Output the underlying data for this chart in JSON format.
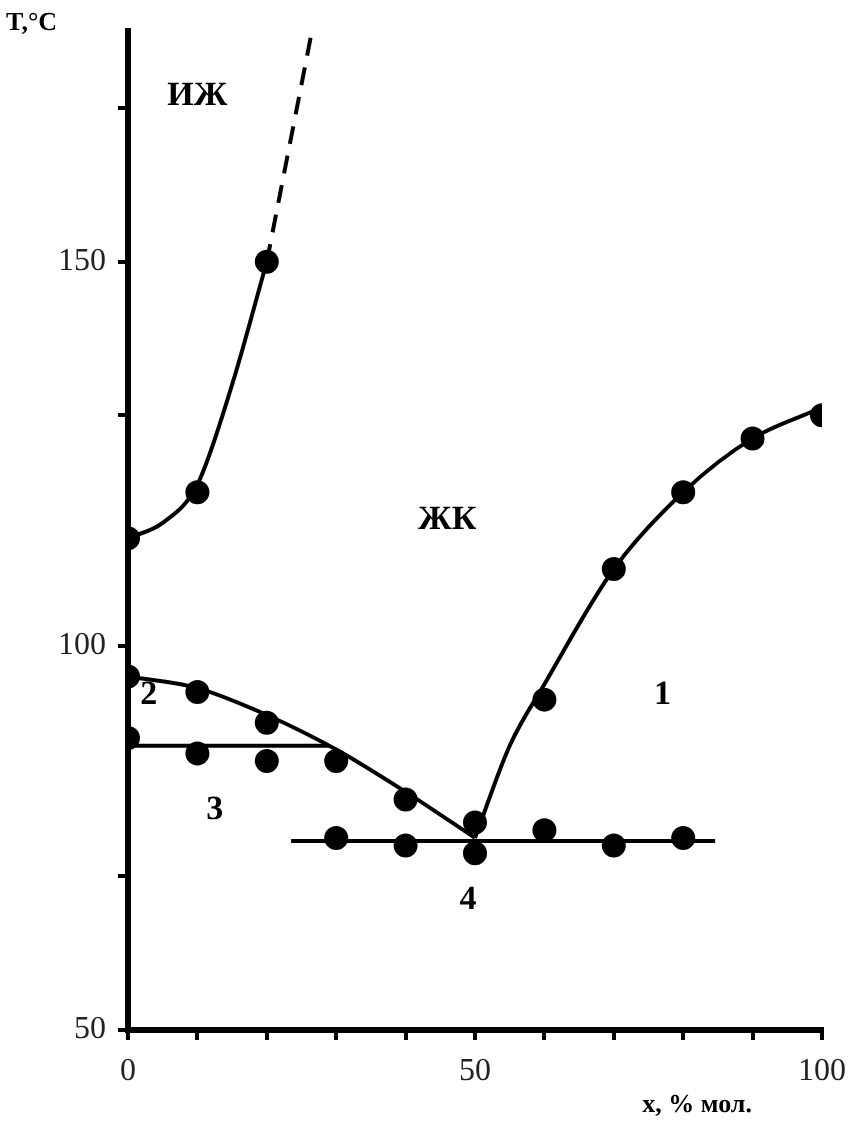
{
  "chart_data": {
    "type": "scatter",
    "xlabel": "x, % мол.",
    "ylabel": "T,°C",
    "xlim": [
      0,
      100
    ],
    "ylim": [
      50,
      180
    ],
    "xticks": [
      0,
      {
        "value": 10,
        "label": null
      },
      {
        "value": 20,
        "label": null
      },
      {
        "value": 30,
        "label": null
      },
      {
        "value": 40,
        "label": null
      },
      50,
      {
        "value": 60,
        "label": null
      },
      {
        "value": 70,
        "label": null
      },
      {
        "value": 80,
        "label": null
      },
      {
        "value": 90,
        "label": null
      },
      100
    ],
    "yticks": [
      50,
      {
        "value": 70,
        "label": null
      },
      100,
      {
        "value": 130,
        "label": null
      },
      150,
      {
        "value": 170,
        "label": null
      }
    ],
    "grid": false,
    "legend": false,
    "marker": "circle",
    "series": [
      {
        "color": "#000000",
        "x": [
          0,
          10,
          20,
          0,
          10,
          20,
          30,
          40,
          50,
          0,
          10,
          20,
          30,
          40,
          50,
          60,
          70,
          80,
          60,
          70,
          80,
          90,
          100
        ],
        "values": [
          114,
          120,
          150,
          96,
          94,
          90,
          85,
          80,
          77,
          88,
          86,
          85,
          75,
          74,
          73,
          76,
          74,
          75,
          93,
          110,
          120,
          127,
          130
        ]
      },
      {
        "type": "line",
        "marker": "none",
        "color": "#000000",
        "x": [
          0,
          5,
          10,
          15,
          20
        ],
        "values": [
          114,
          116,
          121,
          134,
          150
        ]
      },
      {
        "type": "line",
        "marker": "none",
        "line_style": "dashed",
        "color": "#000000",
        "x": [
          20,
          26.5
        ],
        "values": [
          150,
          180
        ]
      },
      {
        "type": "line",
        "marker": "none",
        "color": "#000000",
        "x": [
          0,
          10,
          20,
          30,
          40,
          50
        ],
        "values": [
          96,
          94.5,
          91,
          86.5,
          81,
          75
        ]
      },
      {
        "type": "line",
        "marker": "none",
        "color": "#000000",
        "x": [
          50,
          55,
          60,
          70,
          80,
          90,
          100
        ],
        "values": [
          75,
          87,
          95,
          110,
          120,
          127,
          131
        ]
      },
      {
        "type": "line",
        "marker": "none",
        "color": "#000000",
        "x": [
          0,
          29
        ],
        "values": [
          87,
          87
        ]
      },
      {
        "type": "line",
        "marker": "none",
        "color": "#000000",
        "x": [
          23.5,
          84.6
        ],
        "values": [
          74.6,
          74.6
        ]
      }
    ],
    "annotations": [
      "ИЖ",
      "ЖК",
      "1",
      "2",
      "3",
      "4"
    ]
  }
}
